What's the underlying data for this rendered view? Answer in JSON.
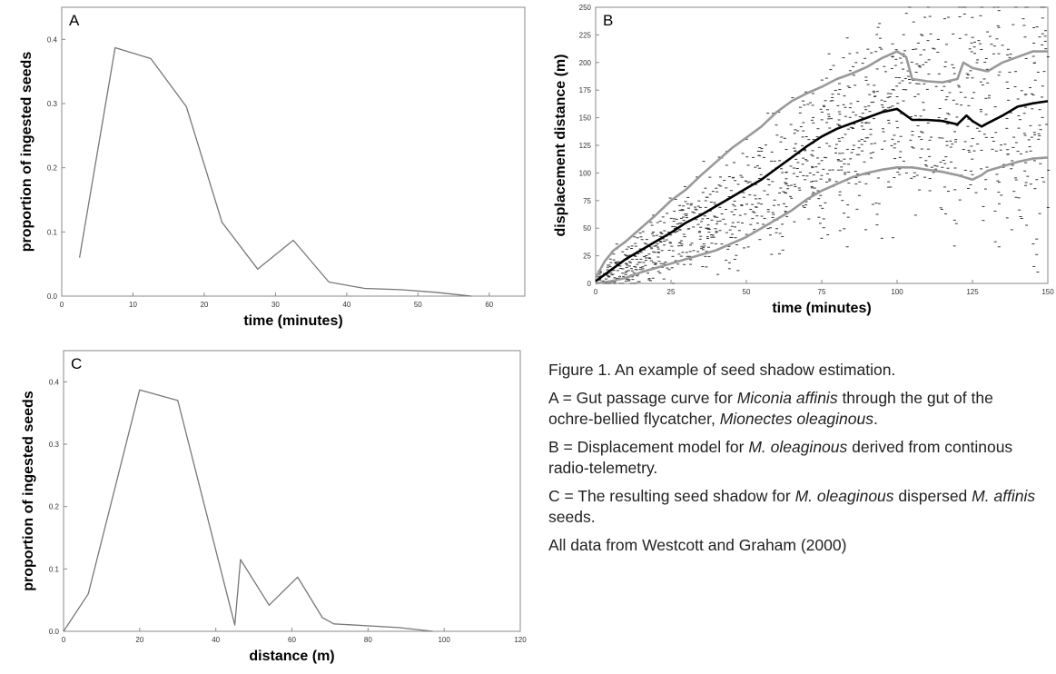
{
  "chart_data": [
    {
      "panel": "A",
      "type": "line",
      "xlabel": "time (minutes)",
      "ylabel": "proportion of ingested seeds",
      "xlim": [
        0,
        65
      ],
      "ylim": [
        0,
        0.45
      ],
      "xticks": [
        0,
        10,
        20,
        30,
        40,
        50,
        60
      ],
      "yticks": [
        0.0,
        0.1,
        0.2,
        0.3,
        0.4
      ],
      "ytick_labels": [
        "0.0",
        "0.1",
        "0.2",
        "0.3",
        "0.4"
      ],
      "grid": false,
      "series": [
        {
          "x": [
            2.5,
            7.5,
            12.5,
            17.5,
            22.5,
            27.5,
            32.5,
            37.5,
            42.5,
            47.5,
            52.5,
            57.5
          ],
          "y": [
            0.06,
            0.387,
            0.37,
            0.295,
            0.115,
            0.042,
            0.087,
            0.022,
            0.012,
            0.01,
            0.006,
            0.0
          ]
        }
      ]
    },
    {
      "panel": "B",
      "type": "line",
      "xlabel": "time (minutes)",
      "ylabel": "displacement distance (m)",
      "xlim": [
        0,
        150
      ],
      "ylim": [
        0,
        250
      ],
      "xticks": [
        0,
        25,
        50,
        75,
        100,
        125,
        150
      ],
      "yticks": [
        0,
        25,
        50,
        75,
        100,
        125,
        150,
        175,
        200,
        225,
        250
      ],
      "grid": false,
      "series": [
        {
          "color": "#999999",
          "x": [
            0,
            3,
            6,
            10,
            15,
            20,
            25,
            30,
            35,
            40,
            45,
            50,
            55,
            60,
            65,
            70,
            75,
            80,
            85,
            90,
            95,
            100,
            103,
            105,
            110,
            115,
            120,
            122,
            125,
            130,
            135,
            140,
            145,
            150
          ],
          "y": [
            5,
            20,
            30,
            38,
            50,
            62,
            75,
            85,
            98,
            110,
            122,
            132,
            142,
            155,
            165,
            172,
            178,
            185,
            190,
            196,
            204,
            210,
            205,
            185,
            183,
            182,
            185,
            200,
            195,
            192,
            200,
            205,
            210,
            210
          ]
        },
        {
          "color": "#000000",
          "x": [
            0,
            5,
            10,
            15,
            20,
            25,
            30,
            35,
            40,
            45,
            50,
            55,
            60,
            65,
            70,
            75,
            80,
            85,
            90,
            95,
            100,
            103,
            105,
            110,
            115,
            120,
            123,
            125,
            128,
            130,
            135,
            140,
            145,
            150
          ],
          "y": [
            2,
            12,
            22,
            30,
            38,
            46,
            55,
            62,
            70,
            78,
            86,
            94,
            104,
            114,
            124,
            133,
            140,
            145,
            150,
            155,
            158,
            152,
            148,
            148,
            147,
            144,
            152,
            147,
            142,
            145,
            152,
            160,
            163,
            165
          ]
        },
        {
          "color": "#999999",
          "x": [
            0,
            5,
            10,
            15,
            20,
            25,
            30,
            35,
            40,
            45,
            50,
            55,
            60,
            65,
            70,
            75,
            80,
            85,
            90,
            95,
            100,
            105,
            110,
            115,
            120,
            125,
            128,
            130,
            135,
            140,
            145,
            150
          ],
          "y": [
            0,
            2,
            5,
            10,
            14,
            18,
            22,
            26,
            30,
            36,
            42,
            50,
            58,
            66,
            76,
            84,
            90,
            96,
            100,
            103,
            105,
            105,
            103,
            101,
            98,
            94,
            98,
            102,
            106,
            110,
            113,
            114
          ]
        }
      ]
    },
    {
      "panel": "C",
      "type": "line",
      "xlabel": "distance (m)",
      "ylabel": "proportion of ingested seeds",
      "xlim": [
        0,
        120
      ],
      "ylim": [
        0,
        0.45
      ],
      "xticks": [
        0,
        20,
        40,
        60,
        80,
        100,
        120
      ],
      "yticks": [
        0.0,
        0.1,
        0.2,
        0.3,
        0.4
      ],
      "ytick_labels": [
        "0.0",
        "0.1",
        "0.2",
        "0.3",
        "0.4"
      ],
      "grid": false,
      "series": [
        {
          "x": [
            0,
            6.5,
            20,
            30,
            45,
            46.5,
            54,
            61.5,
            68,
            71,
            88,
            97
          ],
          "y": [
            0.0,
            0.06,
            0.387,
            0.37,
            0.01,
            0.115,
            0.042,
            0.087,
            0.022,
            0.012,
            0.006,
            0.0
          ]
        }
      ]
    }
  ],
  "panels": {
    "a": {
      "letter": "A"
    },
    "b": {
      "letter": "B"
    },
    "c": {
      "letter": "C"
    }
  },
  "caption": {
    "title": "Figure 1. An example of seed shadow estimation.",
    "paragraphs": [
      [
        {
          "t": "A = Gut passage curve for ",
          "i": false
        },
        {
          "t": "Miconia affinis",
          "i": true
        },
        {
          "t": " through the gut of the ochre-bellied flycatcher, ",
          "i": false
        },
        {
          "t": "Mionectes oleaginous",
          "i": true
        },
        {
          "t": ".",
          "i": false
        }
      ],
      [
        {
          "t": "B = Displacement model for ",
          "i": false
        },
        {
          "t": "M. oleaginous",
          "i": true
        },
        {
          "t": " derived from continous radio-telemetry.",
          "i": false
        }
      ],
      [
        {
          "t": "C = The resulting seed shadow for ",
          "i": false
        },
        {
          "t": "M. oleaginous",
          "i": true
        },
        {
          "t": " dispersed ",
          "i": false
        },
        {
          "t": "M. affinis",
          "i": true
        },
        {
          "t": " seeds.",
          "i": false
        }
      ],
      [
        {
          "t": "All data from Westcott and Graham (2000)",
          "i": false
        }
      ]
    ]
  }
}
